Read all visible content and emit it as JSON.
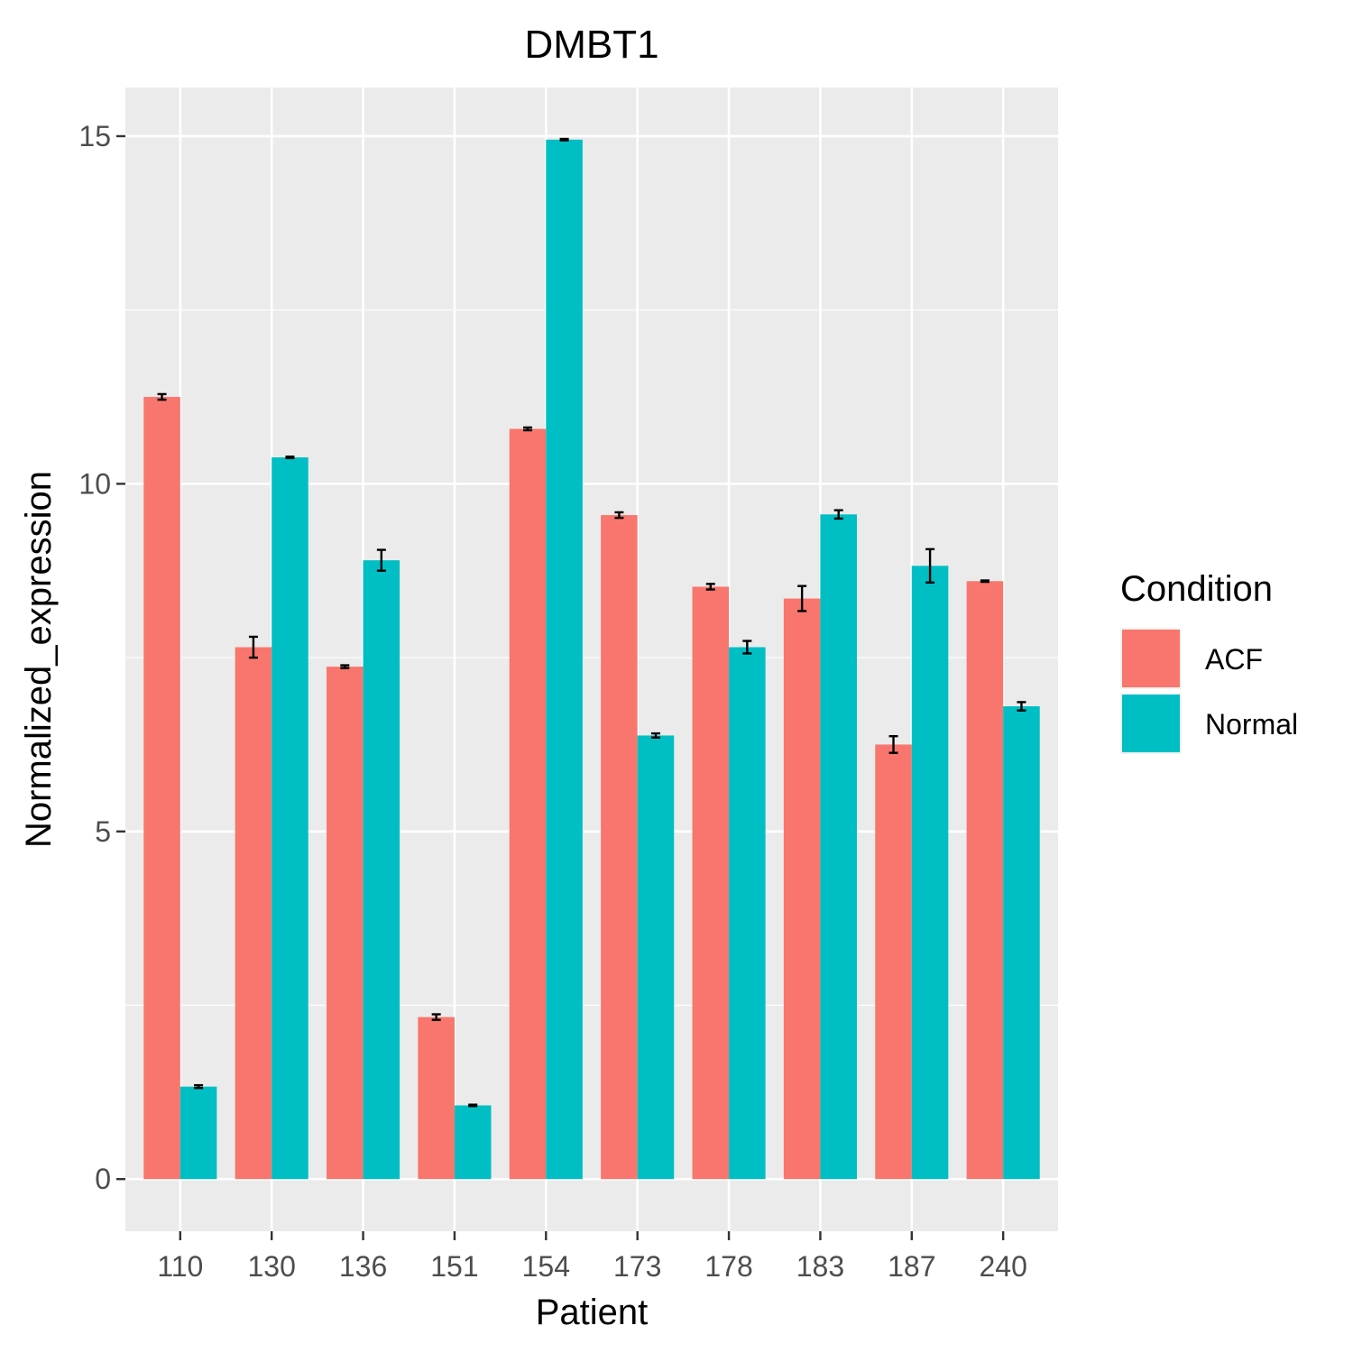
{
  "chart_data": {
    "type": "bar",
    "title": "DMBT1",
    "xlabel": "Patient",
    "ylabel": "Normalized_expression",
    "categories": [
      "110",
      "130",
      "136",
      "151",
      "154",
      "173",
      "178",
      "183",
      "187",
      "240"
    ],
    "ylim": [
      -0.75,
      15.7
    ],
    "yticks": [
      0,
      5,
      10,
      15
    ],
    "grid": true,
    "legend": {
      "title": "Condition",
      "placement": "right"
    },
    "series": [
      {
        "name": "ACF",
        "color": "#F8766D",
        "values": [
          11.25,
          7.65,
          7.37,
          2.33,
          10.79,
          9.55,
          8.52,
          8.35,
          6.25,
          8.6
        ],
        "errors": [
          0.04,
          0.15,
          0.02,
          0.04,
          0.02,
          0.04,
          0.04,
          0.18,
          0.12,
          0.01
        ]
      },
      {
        "name": "Normal",
        "color": "#00BFC4",
        "values": [
          1.33,
          10.38,
          8.9,
          1.06,
          14.95,
          6.38,
          7.65,
          9.56,
          8.82,
          6.8
        ],
        "errors": [
          0.02,
          0.01,
          0.15,
          0.01,
          0.01,
          0.03,
          0.09,
          0.06,
          0.24,
          0.06
        ]
      }
    ]
  }
}
